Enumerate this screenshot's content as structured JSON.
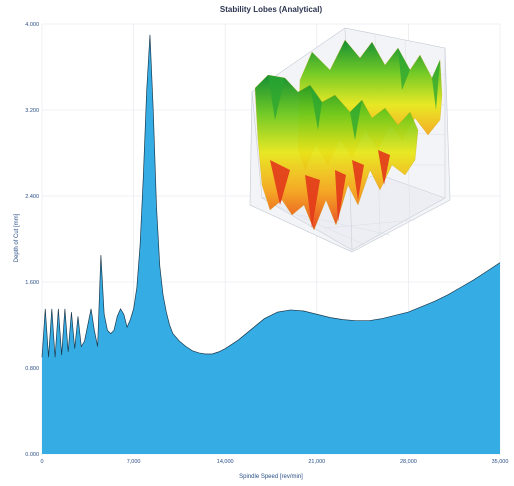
{
  "chart_data": {
    "type": "area",
    "title": "Stability Lobes (Analytical)",
    "xlabel": "Spindle Speed [rev/min]",
    "ylabel": "Depth of Cut [mm]",
    "xlim": [
      0,
      35000
    ],
    "ylim": [
      0,
      4.0
    ],
    "x_ticks": [
      "0",
      "7,000",
      "14,000",
      "21,000",
      "28,000",
      "35,000"
    ],
    "y_ticks": [
      "0.000",
      "0.800",
      "1.600",
      "2.400",
      "3.200",
      "4.000"
    ],
    "grid": true,
    "legend": "none",
    "fill_color": "#35ace3",
    "series": [
      {
        "x": [
          0,
          250,
          500,
          750,
          1000,
          1250,
          1500,
          1750,
          2000,
          2250,
          2500,
          2750,
          3000,
          3250,
          3500,
          3750,
          4000,
          4250,
          4500,
          4750,
          5000,
          5250,
          5500,
          5750,
          6000,
          6250,
          6500,
          6750,
          7000,
          7250,
          7500,
          7750,
          8000,
          8250,
          8500,
          8750,
          9000,
          9250,
          9500,
          9750,
          10000,
          10500,
          11000,
          11500,
          12000,
          12500,
          13000,
          13500,
          14000,
          15000,
          16000,
          17000,
          18000,
          19000,
          20000,
          21000,
          22000,
          23000,
          24000,
          25000,
          26000,
          27000,
          28000,
          29000,
          30000,
          31000,
          32000,
          33000,
          34000,
          35000
        ],
        "y": [
          0.9,
          1.35,
          0.9,
          1.35,
          0.9,
          1.35,
          0.92,
          1.35,
          0.95,
          1.32,
          0.98,
          1.28,
          1.0,
          1.05,
          1.2,
          1.35,
          1.15,
          1.0,
          1.85,
          1.3,
          1.15,
          1.12,
          1.15,
          1.28,
          1.35,
          1.3,
          1.18,
          1.25,
          1.35,
          1.55,
          1.95,
          2.6,
          3.38,
          3.9,
          3.2,
          2.3,
          1.75,
          1.48,
          1.32,
          1.2,
          1.12,
          1.05,
          1.0,
          0.96,
          0.94,
          0.93,
          0.93,
          0.95,
          0.98,
          1.06,
          1.16,
          1.26,
          1.32,
          1.34,
          1.33,
          1.3,
          1.27,
          1.25,
          1.24,
          1.24,
          1.26,
          1.29,
          1.32,
          1.37,
          1.42,
          1.48,
          1.55,
          1.62,
          1.7,
          1.78
        ]
      }
    ],
    "inset": {
      "type": "3d-surface",
      "colors": [
        "#0a8a2a",
        "#6cc81c",
        "#e8e81a",
        "#f6a41b",
        "#e8401a"
      ]
    }
  }
}
